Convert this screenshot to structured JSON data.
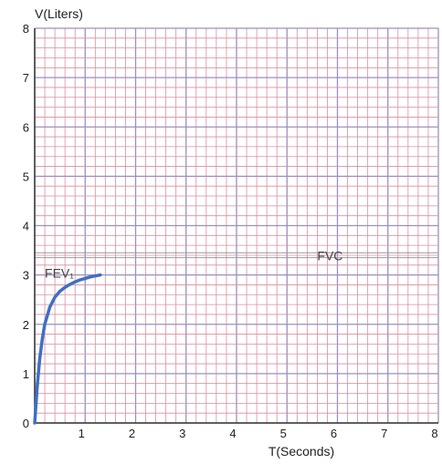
{
  "chart_data": {
    "type": "line",
    "xlabel": "T(Seconds)",
    "ylabel": "V(Liters)",
    "xlim": [
      0,
      8
    ],
    "ylim": [
      0,
      8
    ],
    "x_ticks": [
      "1",
      "2",
      "3",
      "4",
      "5",
      "6",
      "7",
      "8"
    ],
    "y_ticks": [
      "0",
      "1",
      "2",
      "3",
      "4",
      "5",
      "6",
      "7",
      "8"
    ],
    "grid": true,
    "grid_minor_per_unit": 5,
    "series": [
      {
        "color": "#3e6fc4",
        "x": [
          0.0,
          0.05,
          0.1,
          0.15,
          0.2,
          0.3,
          0.4,
          0.5,
          0.6,
          0.7,
          0.8,
          0.9,
          1.0,
          1.1,
          1.2,
          1.3
        ],
        "y": [
          0.0,
          0.75,
          1.3,
          1.7,
          2.0,
          2.35,
          2.55,
          2.67,
          2.75,
          2.81,
          2.86,
          2.9,
          2.93,
          2.96,
          2.98,
          3.0
        ]
      }
    ],
    "reference_lines": [
      {
        "y": 3.35,
        "color": "#999999"
      },
      {
        "y": 3.45,
        "color": "#999999"
      }
    ],
    "annotations": [
      {
        "text": "FVC",
        "x": 5.6,
        "y": 3.3
      },
      {
        "text": "FEV₁",
        "x": 0.2,
        "y": 2.95
      }
    ],
    "colors": {
      "grid_minor": "#d98f9f",
      "grid_major": "#9c8fbf",
      "axis": "#333333"
    }
  }
}
